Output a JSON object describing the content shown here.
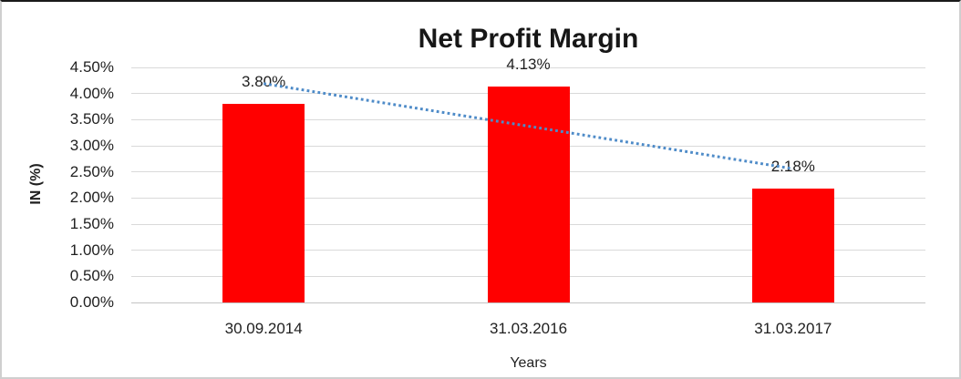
{
  "chart_data": {
    "type": "bar",
    "title": "Net Profit Margin",
    "categories": [
      "30.09.2014",
      "31.03.2016",
      "31.03.2017"
    ],
    "values": [
      3.8,
      4.13,
      2.18
    ],
    "value_labels": [
      "3.80%",
      "4.13%",
      "2.18%"
    ],
    "xlabel": "Years",
    "ylabel": "IN (%)",
    "ylim": [
      0,
      4.5
    ],
    "ytick_step": 0.5,
    "yticks": [
      "0.00%",
      "0.50%",
      "1.00%",
      "1.50%",
      "2.00%",
      "2.50%",
      "3.00%",
      "3.50%",
      "4.00%",
      "4.50%"
    ],
    "grid": "horizontal",
    "legend": "none",
    "bar_color": "#ff0000",
    "gridline_color": "#d9d9d9",
    "trendline": {
      "type": "linear",
      "style": "dotted",
      "color": "#4e8bc8",
      "start_value": 4.19,
      "end_value": 2.56
    }
  }
}
